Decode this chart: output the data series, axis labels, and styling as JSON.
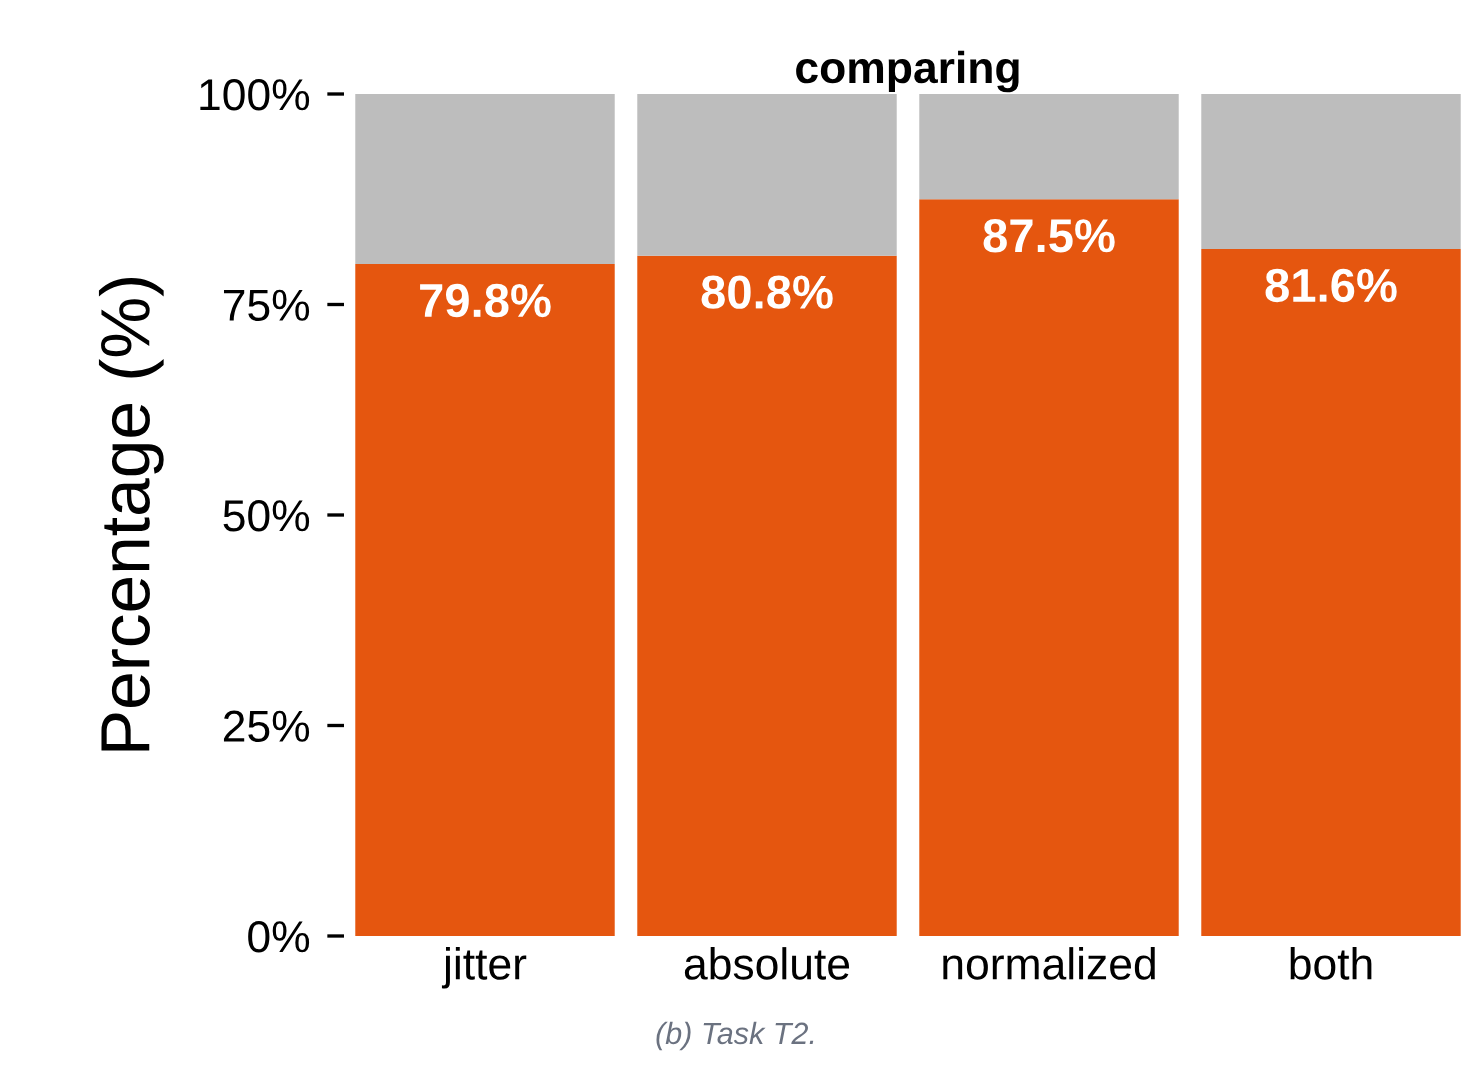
{
  "chart_data": {
    "type": "bar",
    "title": "comparing",
    "ylabel": "Percentage (%)",
    "categories": [
      "jitter",
      "absolute",
      "normalized",
      "both"
    ],
    "stacked": true,
    "series": [
      {
        "color": "#e5560f",
        "values": [
          79.8,
          80.8,
          87.5,
          81.6
        ],
        "value_labels": [
          "79.8%",
          "80.8%",
          "87.5%",
          "81.6%"
        ]
      },
      {
        "color": "#bdbdbd",
        "values": [
          20.2,
          19.2,
          12.5,
          18.4
        ]
      }
    ],
    "ylim": [
      0,
      100
    ],
    "yticks": [
      {
        "value": 0,
        "label": "0%"
      },
      {
        "value": 25,
        "label": "25%"
      },
      {
        "value": 50,
        "label": "50%"
      },
      {
        "value": 75,
        "label": "75%"
      },
      {
        "value": 100,
        "label": "100%"
      }
    ],
    "grid": false,
    "legend": false,
    "annotations": [
      "(b) Task T2."
    ]
  }
}
